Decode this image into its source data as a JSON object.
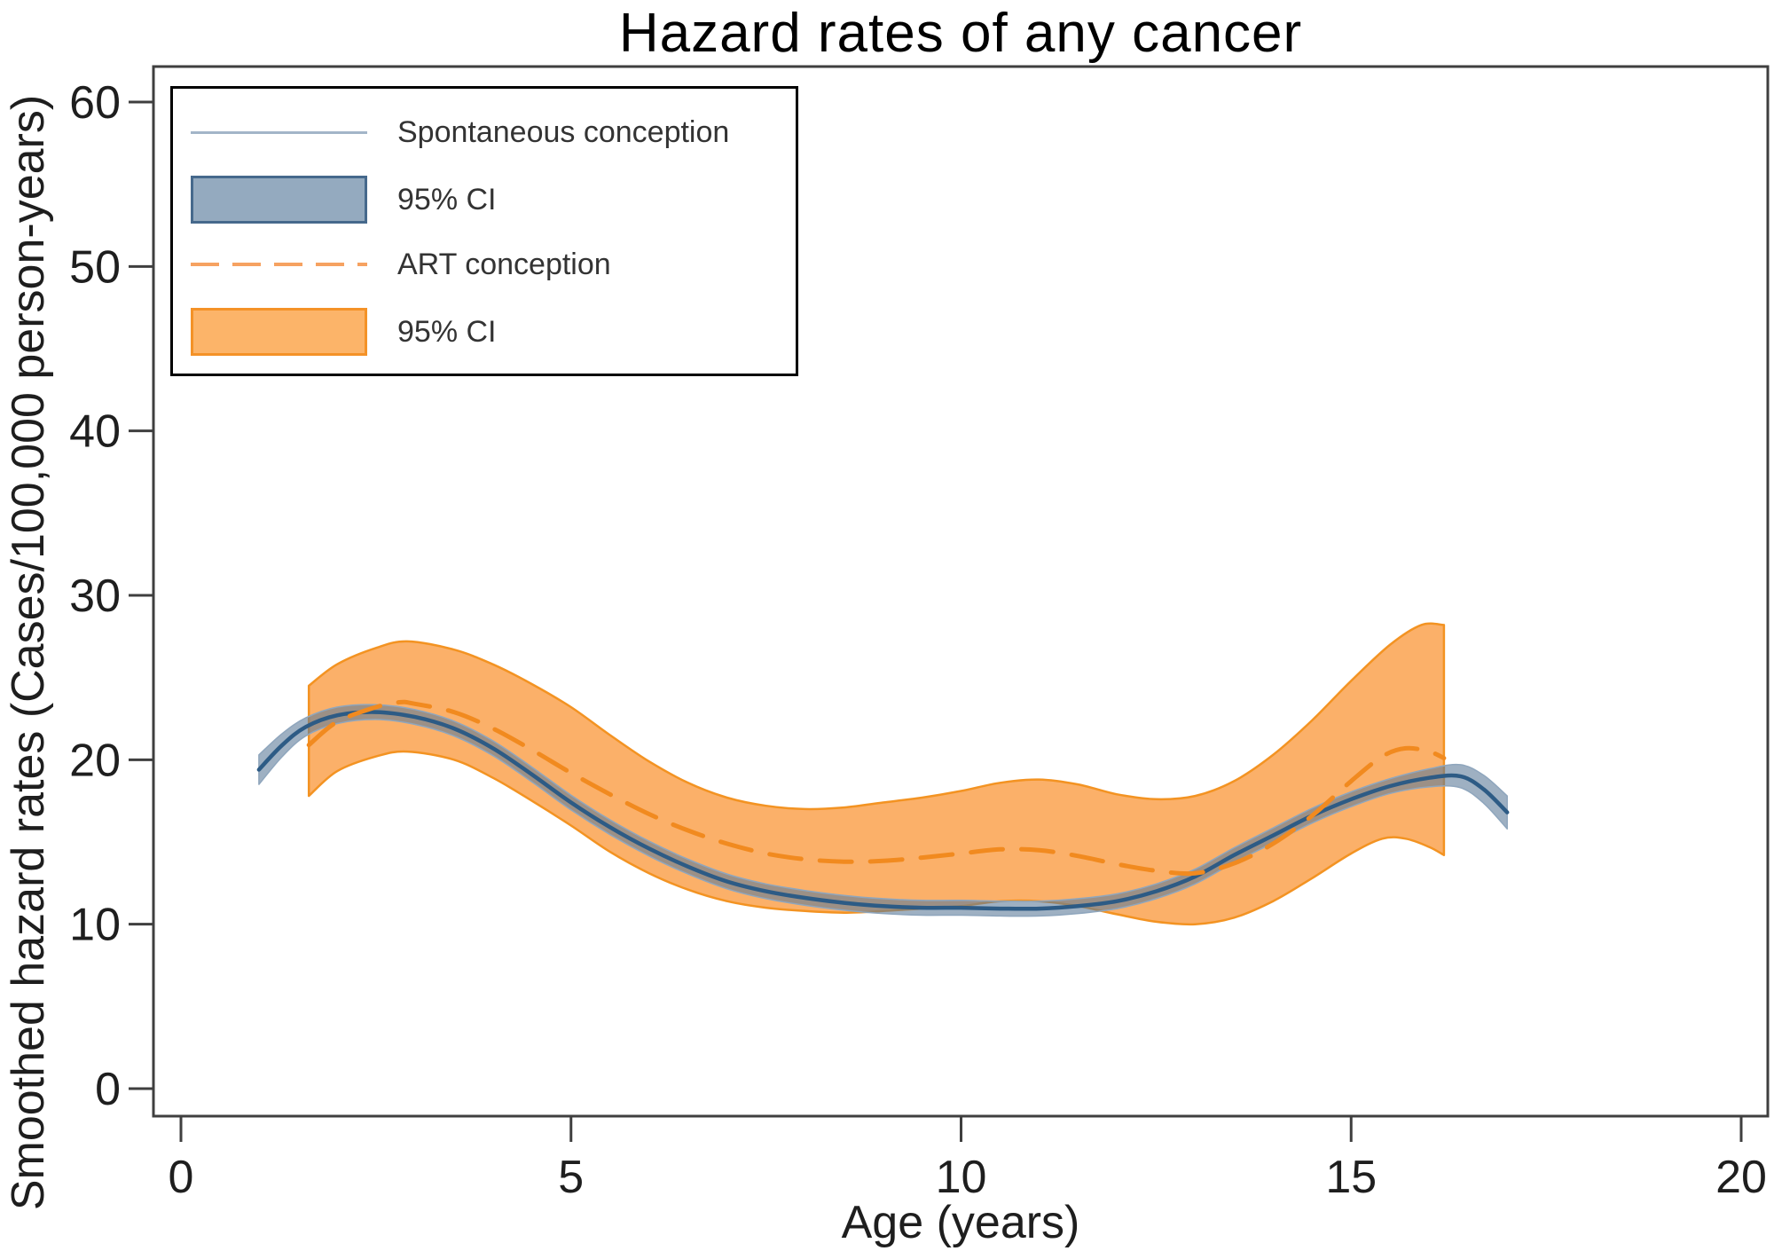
{
  "legend": {
    "items": [
      {
        "label": "Spontaneous conception",
        "swatch": "line",
        "color": "#a3b5c8"
      },
      {
        "label": "95% CI",
        "swatch": "rect",
        "fill": "#94aabf",
        "stroke": "#46698c"
      },
      {
        "label": "ART conception",
        "swatch": "dashed-line",
        "color": "#f6a261"
      },
      {
        "label": "95% CI",
        "swatch": "rect",
        "fill": "#fcb469",
        "stroke": "#f49227"
      }
    ]
  },
  "colors": {
    "spontaneous_line": "#2d5b85",
    "spontaneous_ci_fill": "rgba(93,124,153,0.6)",
    "spontaneous_ci_edge": "#8fa6bd",
    "art_line": "#f18a1f",
    "art_ci_fill": "#fbb069",
    "art_ci_edge": "#f39322",
    "axis": "#3f3f3f",
    "text": "#1e1e1e"
  },
  "chart_data": {
    "type": "line",
    "title": "Hazard rates of any cancer",
    "xlabel": "Age (years)",
    "ylabel": "Smoothed hazard rates (Cases/100,000 person-years)",
    "xlim": [
      0,
      20
    ],
    "ylim": [
      0,
      60
    ],
    "x_ticks": [
      0,
      5,
      10,
      15,
      20
    ],
    "y_ticks": [
      0,
      10,
      20,
      30,
      40,
      50,
      60
    ],
    "grid": false,
    "legend_position": "top-left",
    "series": [
      {
        "name": "Spontaneous conception",
        "style": "solid",
        "zorder": 3,
        "color": "#2d5b85",
        "width": 4.5,
        "points": [
          [
            1.0,
            19.4
          ],
          [
            1.3,
            20.9
          ],
          [
            1.6,
            22.0
          ],
          [
            2.0,
            22.7
          ],
          [
            2.5,
            22.9
          ],
          [
            3.0,
            22.6
          ],
          [
            3.5,
            21.9
          ],
          [
            4.0,
            20.7
          ],
          [
            4.5,
            19.1
          ],
          [
            5.0,
            17.4
          ],
          [
            5.5,
            15.9
          ],
          [
            6.0,
            14.6
          ],
          [
            6.5,
            13.5
          ],
          [
            7.0,
            12.6
          ],
          [
            7.5,
            12.0
          ],
          [
            8.0,
            11.6
          ],
          [
            8.5,
            11.3
          ],
          [
            9.0,
            11.1
          ],
          [
            9.5,
            11.0
          ],
          [
            10.0,
            11.0
          ],
          [
            10.5,
            10.95
          ],
          [
            11.0,
            10.95
          ],
          [
            11.5,
            11.1
          ],
          [
            12.0,
            11.4
          ],
          [
            12.5,
            12.0
          ],
          [
            13.0,
            12.9
          ],
          [
            13.5,
            14.2
          ],
          [
            14.0,
            15.4
          ],
          [
            14.5,
            16.6
          ],
          [
            15.0,
            17.6
          ],
          [
            15.5,
            18.4
          ],
          [
            16.0,
            18.9
          ],
          [
            16.4,
            19.0
          ],
          [
            16.7,
            18.2
          ],
          [
            17.0,
            16.8
          ]
        ]
      },
      {
        "name": "Spontaneous conception 95% CI",
        "style": "band",
        "zorder": 2,
        "fill": "rgba(93,124,153,0.6)",
        "edge": "#8fa6bd",
        "edge_width": 1.5,
        "upper": [
          [
            1.0,
            20.3
          ],
          [
            1.3,
            21.6
          ],
          [
            1.6,
            22.55
          ],
          [
            2.0,
            23.2
          ],
          [
            2.5,
            23.35
          ],
          [
            3.0,
            23.05
          ],
          [
            3.5,
            22.35
          ],
          [
            4.0,
            21.15
          ],
          [
            4.5,
            19.55
          ],
          [
            5.0,
            17.85
          ],
          [
            5.5,
            16.35
          ],
          [
            6.0,
            15.05
          ],
          [
            6.5,
            13.95
          ],
          [
            7.0,
            13.05
          ],
          [
            7.5,
            12.45
          ],
          [
            8.0,
            12.05
          ],
          [
            8.5,
            11.75
          ],
          [
            9.0,
            11.55
          ],
          [
            9.5,
            11.45
          ],
          [
            10.0,
            11.45
          ],
          [
            10.5,
            11.4
          ],
          [
            11.0,
            11.4
          ],
          [
            11.5,
            11.55
          ],
          [
            12.0,
            11.85
          ],
          [
            12.5,
            12.45
          ],
          [
            13.0,
            13.35
          ],
          [
            13.5,
            14.65
          ],
          [
            14.0,
            15.85
          ],
          [
            14.5,
            17.05
          ],
          [
            15.0,
            18.05
          ],
          [
            15.5,
            18.85
          ],
          [
            16.0,
            19.45
          ],
          [
            16.4,
            19.7
          ],
          [
            16.7,
            19.05
          ],
          [
            17.0,
            17.8
          ]
        ],
        "lower": [
          [
            1.0,
            18.5
          ],
          [
            1.3,
            20.2
          ],
          [
            1.6,
            21.45
          ],
          [
            2.0,
            22.2
          ],
          [
            2.5,
            22.45
          ],
          [
            3.0,
            22.15
          ],
          [
            3.5,
            21.45
          ],
          [
            4.0,
            20.25
          ],
          [
            4.5,
            18.65
          ],
          [
            5.0,
            16.95
          ],
          [
            5.5,
            15.45
          ],
          [
            6.0,
            14.15
          ],
          [
            6.5,
            13.05
          ],
          [
            7.0,
            12.15
          ],
          [
            7.5,
            11.55
          ],
          [
            8.0,
            11.15
          ],
          [
            8.5,
            10.85
          ],
          [
            9.0,
            10.65
          ],
          [
            9.5,
            10.55
          ],
          [
            10.0,
            10.55
          ],
          [
            10.5,
            10.5
          ],
          [
            11.0,
            10.5
          ],
          [
            11.5,
            10.65
          ],
          [
            12.0,
            10.95
          ],
          [
            12.5,
            11.55
          ],
          [
            13.0,
            12.45
          ],
          [
            13.5,
            13.75
          ],
          [
            14.0,
            14.95
          ],
          [
            14.5,
            16.15
          ],
          [
            15.0,
            17.15
          ],
          [
            15.5,
            17.95
          ],
          [
            16.0,
            18.35
          ],
          [
            16.4,
            18.3
          ],
          [
            16.7,
            17.35
          ],
          [
            17.0,
            15.8
          ]
        ]
      },
      {
        "name": "ART conception",
        "style": "dashed",
        "zorder": 4,
        "color": "#f18a1f",
        "width": 5,
        "dash": [
          36,
          21
        ],
        "points": [
          [
            1.64,
            20.9
          ],
          [
            2.0,
            22.3
          ],
          [
            2.5,
            23.2
          ],
          [
            2.8,
            23.5
          ],
          [
            3.0,
            23.4
          ],
          [
            3.5,
            22.9
          ],
          [
            4.0,
            21.9
          ],
          [
            4.5,
            20.6
          ],
          [
            5.0,
            19.2
          ],
          [
            5.5,
            17.9
          ],
          [
            6.0,
            16.7
          ],
          [
            6.5,
            15.7
          ],
          [
            7.0,
            14.9
          ],
          [
            7.5,
            14.3
          ],
          [
            8.0,
            13.95
          ],
          [
            8.5,
            13.8
          ],
          [
            9.0,
            13.85
          ],
          [
            9.5,
            14.05
          ],
          [
            10.0,
            14.3
          ],
          [
            10.5,
            14.55
          ],
          [
            11.0,
            14.5
          ],
          [
            11.5,
            14.15
          ],
          [
            12.0,
            13.65
          ],
          [
            12.5,
            13.25
          ],
          [
            13.0,
            13.1
          ],
          [
            13.5,
            13.7
          ],
          [
            14.0,
            14.9
          ],
          [
            14.5,
            16.6
          ],
          [
            15.0,
            18.7
          ],
          [
            15.4,
            20.2
          ],
          [
            15.7,
            20.7
          ],
          [
            16.0,
            20.5
          ],
          [
            16.19,
            20.1
          ]
        ]
      },
      {
        "name": "ART conception 95% CI",
        "style": "band",
        "zorder": 1,
        "fill": "#fbb069",
        "edge": "#f39322",
        "edge_width": 2.5,
        "upper": [
          [
            1.64,
            24.5
          ],
          [
            2.0,
            25.8
          ],
          [
            2.5,
            26.8
          ],
          [
            2.9,
            27.2
          ],
          [
            3.5,
            26.7
          ],
          [
            4.0,
            25.8
          ],
          [
            4.5,
            24.6
          ],
          [
            5.0,
            23.2
          ],
          [
            5.5,
            21.5
          ],
          [
            6.0,
            19.9
          ],
          [
            6.5,
            18.6
          ],
          [
            7.0,
            17.7
          ],
          [
            7.5,
            17.2
          ],
          [
            8.0,
            17.0
          ],
          [
            8.5,
            17.1
          ],
          [
            9.0,
            17.4
          ],
          [
            9.5,
            17.7
          ],
          [
            10.0,
            18.1
          ],
          [
            10.5,
            18.6
          ],
          [
            11.0,
            18.8
          ],
          [
            11.5,
            18.5
          ],
          [
            12.0,
            17.9
          ],
          [
            12.5,
            17.6
          ],
          [
            13.0,
            17.8
          ],
          [
            13.5,
            18.7
          ],
          [
            14.0,
            20.3
          ],
          [
            14.5,
            22.4
          ],
          [
            15.0,
            24.8
          ],
          [
            15.5,
            27.0
          ],
          [
            15.9,
            28.2
          ],
          [
            16.19,
            28.2
          ]
        ],
        "lower": [
          [
            1.64,
            17.8
          ],
          [
            2.0,
            19.3
          ],
          [
            2.5,
            20.2
          ],
          [
            2.9,
            20.5
          ],
          [
            3.5,
            20.0
          ],
          [
            4.0,
            18.9
          ],
          [
            4.5,
            17.5
          ],
          [
            5.0,
            16.0
          ],
          [
            5.5,
            14.4
          ],
          [
            6.0,
            13.1
          ],
          [
            6.5,
            12.1
          ],
          [
            7.0,
            11.4
          ],
          [
            7.5,
            11.0
          ],
          [
            8.0,
            10.8
          ],
          [
            8.5,
            10.7
          ],
          [
            9.0,
            10.8
          ],
          [
            9.5,
            10.95
          ],
          [
            10.0,
            11.1
          ],
          [
            10.5,
            11.4
          ],
          [
            11.0,
            11.4
          ],
          [
            11.5,
            11.1
          ],
          [
            12.0,
            10.6
          ],
          [
            12.5,
            10.15
          ],
          [
            13.0,
            10.0
          ],
          [
            13.5,
            10.4
          ],
          [
            14.0,
            11.4
          ],
          [
            14.5,
            12.8
          ],
          [
            15.0,
            14.3
          ],
          [
            15.4,
            15.2
          ],
          [
            15.7,
            15.2
          ],
          [
            16.0,
            14.7
          ],
          [
            16.19,
            14.2
          ]
        ]
      }
    ]
  }
}
